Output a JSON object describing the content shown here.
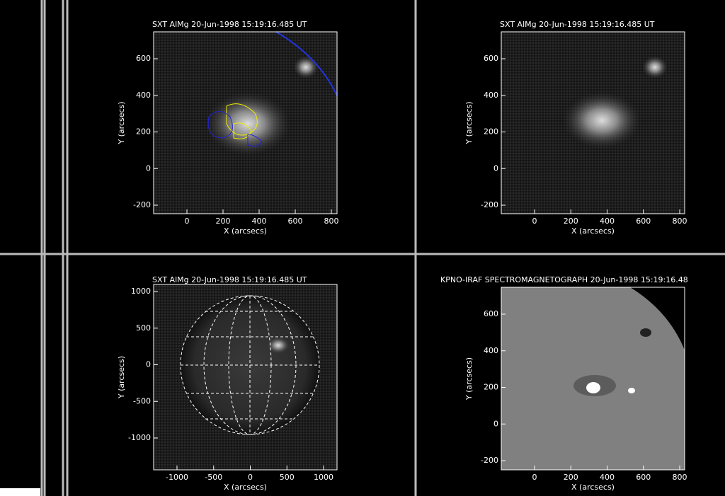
{
  "panels": [
    {
      "title": "SXT AlMg 20-Jun-1998 15:19:16.485 UT",
      "x_label": "X (arcsecs)",
      "y_label": "Y (arcsecs)",
      "x_ticks": [
        0,
        200,
        400,
        600,
        800
      ],
      "y_ticks": [
        600,
        400,
        200,
        0,
        -200
      ]
    },
    {
      "title": "SXT AlMg 20-Jun-1998 15:19:16.485 UT",
      "x_label": "X (arcsecs)",
      "y_label": "Y (arcsecs)",
      "x_ticks": [
        0,
        200,
        400,
        600,
        800
      ],
      "y_ticks": [
        600,
        400,
        200,
        0,
        -200
      ]
    },
    {
      "title": "SXT AlMg 20-Jun-1998 15:19:16.485 UT",
      "x_label": "X (arcsecs)",
      "y_label": "Y (arcsecs)",
      "x_ticks": [
        -1000,
        -500,
        0,
        500,
        1000
      ],
      "y_ticks": [
        1000,
        500,
        0,
        -500,
        -1000
      ]
    },
    {
      "title": "KPNO-IRAF SPECTROMAGNETOGRAPH 20-Jun-1998 15:19:16.48",
      "x_label": "X (arcsecs)",
      "y_label": "Y (arcsecs)",
      "x_ticks": [
        0,
        200,
        400,
        600,
        800
      ],
      "y_ticks": [
        600,
        400,
        200,
        0,
        -200
      ]
    }
  ]
}
